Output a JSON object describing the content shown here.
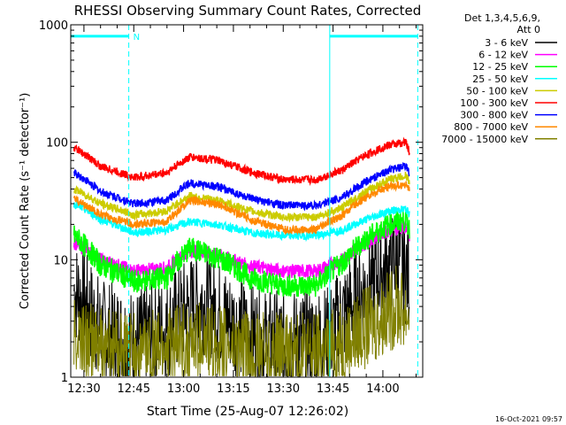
{
  "chart_data": {
    "type": "line",
    "title": "RHESSI Observing Summary Count Rates, Corrected",
    "xlabel": "Start Time (25-Aug-07 12:26:02)",
    "ylabel": "Corrected Count Rate (s⁻¹ detector⁻¹)",
    "x_ticks": [
      "12:30",
      "12:45",
      "13:00",
      "13:15",
      "13:30",
      "13:45",
      "14:00"
    ],
    "x_tick_minutes": [
      30,
      45,
      60,
      75,
      90,
      105,
      120
    ],
    "x_range_minutes": [
      26.03,
      132
    ],
    "y_ticks": [
      {
        "label": "1",
        "value": 1
      },
      {
        "label": "10",
        "value": 10
      },
      {
        "label": "100",
        "value": 100
      },
      {
        "label": "1000",
        "value": 1000
      }
    ],
    "ylim": [
      1,
      1000
    ],
    "y_scale": "log",
    "legend_title": [
      "Det 1,3,4,5,6,9,",
      "Att 0"
    ],
    "legend_placement": "right",
    "series": [
      {
        "name": "3 - 6 keV",
        "color": "#000000",
        "x": [
          27,
          35,
          45,
          55,
          65,
          75,
          85,
          95,
          104,
          112,
          118,
          124,
          128
        ],
        "y": [
          5.5,
          2.5,
          2.0,
          2.6,
          4.5,
          2.8,
          2.0,
          2.0,
          2.2,
          4.5,
          7.0,
          10.0,
          7.0
        ]
      },
      {
        "name": "6 - 12 keV",
        "color": "#ff00ff",
        "x": [
          27,
          35,
          45,
          55,
          62,
          70,
          80,
          90,
          100,
          108,
          115,
          122,
          127,
          128
        ],
        "y": [
          14,
          10,
          8.0,
          8.5,
          12.0,
          11.0,
          8.8,
          8.0,
          8.0,
          10.0,
          14.0,
          18.0,
          19.0,
          15.0
        ]
      },
      {
        "name": "12 - 25 keV",
        "color": "#00ff00",
        "x": [
          27,
          35,
          45,
          55,
          62,
          70,
          80,
          90,
          100,
          108,
          115,
          122,
          127,
          128
        ],
        "y": [
          16,
          9.0,
          6.5,
          7.0,
          12.5,
          10.5,
          7.0,
          6.0,
          6.0,
          9.5,
          15.0,
          20.0,
          22.0,
          18.0
        ]
      },
      {
        "name": "25 - 50 keV",
        "color": "#00ffff",
        "x": [
          27,
          35,
          45,
          55,
          62,
          70,
          80,
          90,
          100,
          108,
          115,
          122,
          127,
          128
        ],
        "y": [
          30,
          22,
          17,
          18,
          21,
          20,
          17,
          16,
          16,
          18,
          22,
          26,
          27,
          24
        ]
      },
      {
        "name": "50 - 100 keV",
        "color": "#cccc00",
        "x": [
          27,
          35,
          45,
          55,
          62,
          70,
          80,
          90,
          100,
          108,
          115,
          122,
          127,
          128
        ],
        "y": [
          40,
          30,
          24,
          26,
          35,
          32,
          26,
          23,
          23,
          28,
          38,
          48,
          52,
          45
        ]
      },
      {
        "name": "100 - 300 keV",
        "color": "#ff0000",
        "x": [
          27,
          35,
          45,
          55,
          62,
          70,
          80,
          90,
          100,
          108,
          115,
          122,
          127,
          128
        ],
        "y": [
          90,
          62,
          50,
          55,
          75,
          70,
          56,
          48,
          48,
          58,
          78,
          95,
          100,
          80
        ]
      },
      {
        "name": "300 - 800 keV",
        "color": "#0000ff",
        "x": [
          27,
          35,
          45,
          55,
          62,
          70,
          80,
          90,
          100,
          108,
          115,
          122,
          127,
          128
        ],
        "y": [
          55,
          38,
          30,
          32,
          45,
          42,
          33,
          29,
          29,
          34,
          46,
          58,
          62,
          55
        ]
      },
      {
        "name": "800 - 7000 keV",
        "color": "#ff8800",
        "x": [
          27,
          35,
          45,
          55,
          62,
          70,
          80,
          90,
          100,
          108,
          115,
          122,
          127,
          128
        ],
        "y": [
          33,
          24,
          20,
          21,
          32,
          30,
          22,
          18,
          18,
          24,
          34,
          42,
          44,
          38
        ]
      },
      {
        "name": "7000 - 15000 keV",
        "color": "#808000",
        "x": [
          27,
          35,
          45,
          55,
          65,
          75,
          85,
          95,
          104,
          112,
          118,
          124,
          128
        ],
        "y": [
          2.2,
          1.8,
          1.6,
          1.8,
          2.0,
          1.7,
          1.6,
          1.6,
          1.7,
          2.3,
          3.0,
          4.0,
          3.5
        ]
      }
    ],
    "markers": {
      "color": "#00ffff",
      "bars": [
        {
          "from_minute": 26.03,
          "to_minute": 43.5,
          "y_value": 800
        },
        {
          "from_minute": 104,
          "to_minute": 130.5,
          "y_value": 800
        }
      ],
      "vlines_solid_minutes": [
        26.03,
        104
      ],
      "vlines_dashed_minutes": [
        43.5,
        130.5
      ],
      "label": "N",
      "label_minute": 44.3
    },
    "grid": false
  },
  "footer": {
    "timestamp": "16-Oct-2021 09:57"
  }
}
